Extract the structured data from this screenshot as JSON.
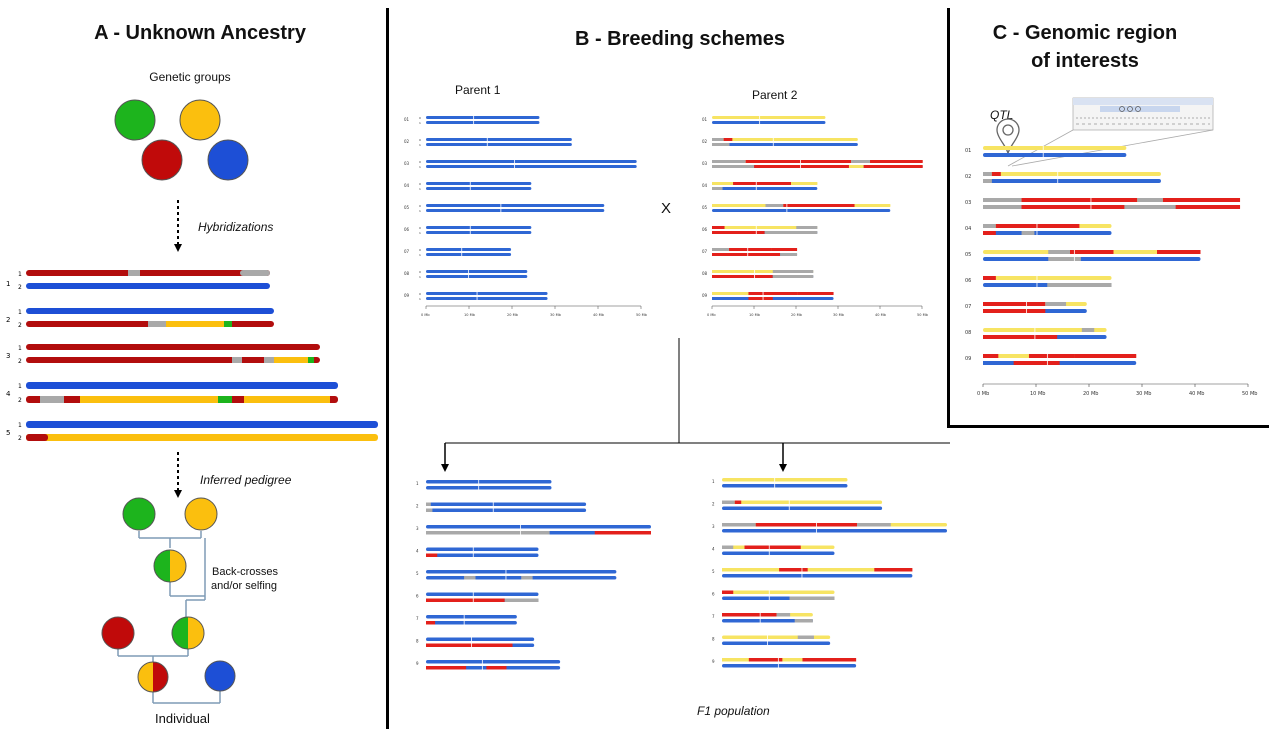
{
  "colors": {
    "blue": "#2f67d4",
    "red": "#e3201b",
    "dark_red": "#b20d0d",
    "yellow": "#f7e463",
    "orange": "#fbbf0e",
    "green": "#1db41d",
    "grey": "#a9a9a9",
    "strong_blue": "#1d4fd6"
  },
  "panel_a": {
    "title": "A - Unknown Ancestry",
    "genetic_groups_label": "Genetic groups",
    "hybridizations_label": "Hybridizations",
    "inferred_pedigree_label": "Inferred pedigree",
    "backcross_label_1": "Back-crosses",
    "backcross_label_2": "and/or selfing",
    "individual_label": "Individual",
    "chromosome_numbers": [
      "1",
      "2",
      "3",
      "4",
      "5"
    ],
    "haplotype_numbers": [
      "1",
      "2"
    ]
  },
  "panel_b": {
    "title": "B - Breeding schemes",
    "parent1_label": "Parent 1",
    "parent2_label": "Parent 2",
    "cross_symbol": "X",
    "f1_label": "F1 population",
    "chromosome_ids": [
      "01",
      "02",
      "03",
      "04",
      "05",
      "06",
      "07",
      "08",
      "09"
    ],
    "axis_ticks": [
      "0 Mb",
      "10 Mb",
      "20 Mb",
      "30 Mb",
      "40 Mb",
      "50 Mb"
    ],
    "f1_chromosome_numbers": [
      "1",
      "2",
      "3",
      "4",
      "5",
      "6",
      "7",
      "8",
      "9"
    ]
  },
  "panel_c": {
    "title_line1": "C - Genomic region",
    "title_line2": "of interests",
    "qtl_label": "QTL",
    "chromosome_ids": [
      "01",
      "02",
      "03",
      "04",
      "05",
      "06",
      "07",
      "08",
      "09"
    ],
    "axis_ticks": [
      "0 Mb",
      "10 Mb",
      "20 Mb",
      "30 Mb",
      "40 Mb",
      "50 Mb"
    ]
  }
}
